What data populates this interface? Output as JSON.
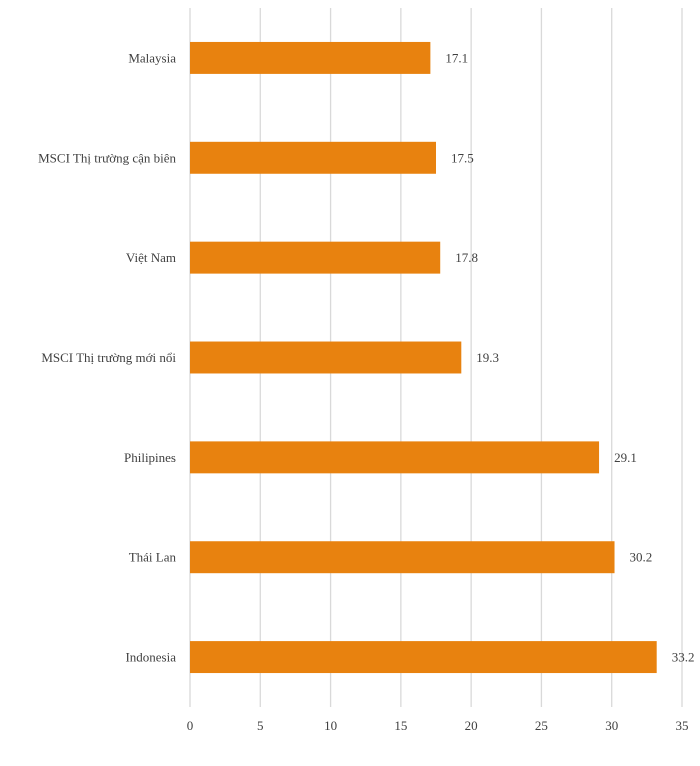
{
  "chart_data": {
    "type": "bar",
    "orientation": "horizontal",
    "categories": [
      "Malaysia",
      "MSCI Thị trường cận biên",
      "Việt Nam",
      "MSCI Thị trường mới nổi",
      "Philipines",
      "Thái Lan",
      "Indonesia"
    ],
    "values": [
      17.1,
      17.5,
      17.8,
      19.3,
      29.1,
      30.2,
      33.2
    ],
    "title": "",
    "xlabel": "",
    "ylabel": "",
    "xlim": [
      0,
      35
    ],
    "xticks": [
      0,
      5,
      10,
      15,
      20,
      25,
      30,
      35
    ],
    "tick_labels": [
      "0",
      "5",
      "10",
      "15",
      "20",
      "25",
      "30",
      "35"
    ],
    "grid": true,
    "legend": "none",
    "bar_color": "#E8820F",
    "grid_color": "#D9D9D9"
  }
}
